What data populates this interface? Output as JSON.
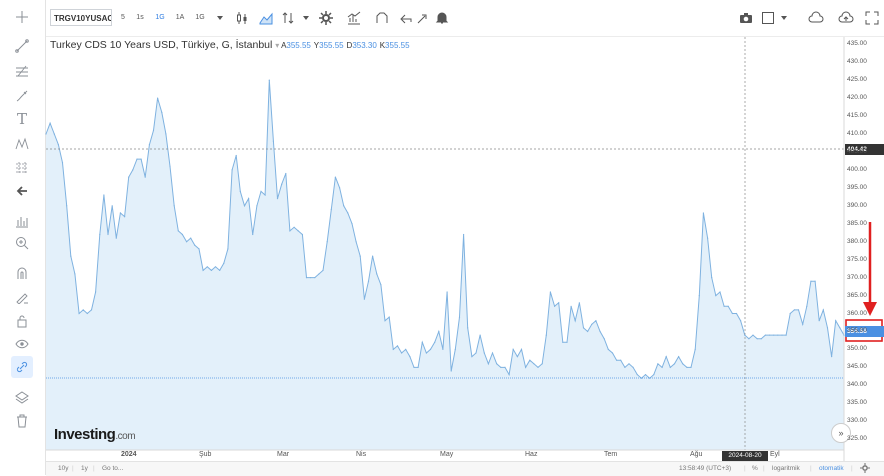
{
  "toolbar": {
    "symbol": "TRGV10YUSAC:",
    "intervals": [
      "5",
      "1s",
      "1G",
      "1A",
      "1G"
    ],
    "active_interval_index": 2
  },
  "legend": {
    "title": "Turkey CDS 10 Years USD, Türkiye, G, İstanbul",
    "a_label": "A",
    "a_value": "355.55",
    "y_label": "Y",
    "y_value": "355.55",
    "d_label": "D",
    "d_value": "353.30",
    "k_label": "K",
    "k_value": "355.55"
  },
  "watermark": {
    "brand": "Investing",
    "suffix": ".com"
  },
  "price_tags": {
    "crosshair_price": "404.42",
    "last_price": "354.58"
  },
  "date_tag": "2024-08-20",
  "bottom": {
    "range_10y": "10y",
    "range_1y": "1y",
    "goto": "Go to...",
    "time": "13:58:49 (UTC+3)",
    "percent": "%",
    "log": "logaritmik",
    "auto": "otomatik"
  },
  "colors": {
    "line": "#7fb2e0",
    "fill": "#e3f0fa",
    "accent": "#2f7de1",
    "annotation": "#e02020",
    "tag_dark": "#333333",
    "tag_blue": "#4a90e2"
  },
  "icons": [
    "crosshair-icon",
    "trend-line-icon",
    "fib-icon",
    "brush-icon",
    "text-icon",
    "pattern-icon",
    "measure-icon",
    "back-arrow-icon",
    "zoom-icon",
    "magnifier-icon",
    "magnet-icon",
    "pencil-icon",
    "lock-icon",
    "eye-icon",
    "link-icon",
    "layers-icon",
    "trash-icon"
  ],
  "chart_data": {
    "type": "area",
    "title": "Turkey CDS 10 Years USD, Türkiye, G, İstanbul",
    "ylim": [
      322,
      437
    ],
    "y_ticks": [
      "435.00",
      "430.00",
      "425.00",
      "420.00",
      "415.00",
      "410.00",
      "405.00",
      "400.00",
      "395.00",
      "390.00",
      "385.00",
      "380.00",
      "375.00",
      "370.00",
      "365.00",
      "360.00",
      "355.00",
      "350.00",
      "345.00",
      "340.00",
      "335.00",
      "330.00",
      "325.00"
    ],
    "x_ticks": [
      "2024",
      "Şub",
      "Mar",
      "Nis",
      "May",
      "Haz",
      "Tem",
      "Ağu",
      "Eyl"
    ],
    "series": [
      {
        "values": [
          410,
          413,
          410,
          407,
          402,
          390,
          376,
          371,
          360,
          361,
          360,
          361,
          366,
          382,
          393,
          382,
          390,
          381,
          388,
          387,
          398,
          400,
          403,
          403,
          398,
          407,
          411,
          420,
          416,
          410,
          401,
          390,
          383,
          382,
          380,
          381,
          379,
          378,
          372,
          373,
          372,
          373,
          372,
          374,
          378,
          400,
          404,
          394,
          390,
          392,
          382,
          390,
          394,
          393,
          425,
          408,
          392,
          396,
          399,
          383,
          384,
          383,
          382,
          370,
          370,
          370,
          371,
          372,
          380,
          389,
          398,
          395,
          390,
          388,
          385,
          380,
          376,
          364,
          369,
          376,
          371,
          368,
          358,
          359,
          350,
          351,
          349,
          350,
          348,
          345,
          345,
          352,
          349,
          350,
          352,
          355,
          350,
          366,
          344,
          350,
          359,
          382,
          356,
          348,
          349,
          354,
          349,
          346,
          349,
          346,
          345,
          345,
          343,
          350,
          348,
          350,
          345,
          347,
          346,
          345,
          346,
          354,
          366,
          362,
          363,
          352,
          352,
          362,
          358,
          363,
          356,
          355,
          357,
          358,
          355,
          353,
          350,
          349,
          347,
          347,
          345,
          346,
          345,
          343,
          342,
          343,
          342,
          343,
          346,
          345,
          348,
          345,
          346,
          348,
          346,
          345,
          345,
          350,
          365,
          388,
          381,
          370,
          365,
          366,
          362,
          362,
          360,
          360,
          358,
          354,
          353,
          354,
          353,
          353,
          354,
          354,
          354,
          354,
          354,
          354,
          360,
          361,
          361,
          357,
          362,
          369,
          369,
          358,
          361,
          356,
          348,
          358,
          356,
          354
        ]
      }
    ]
  }
}
